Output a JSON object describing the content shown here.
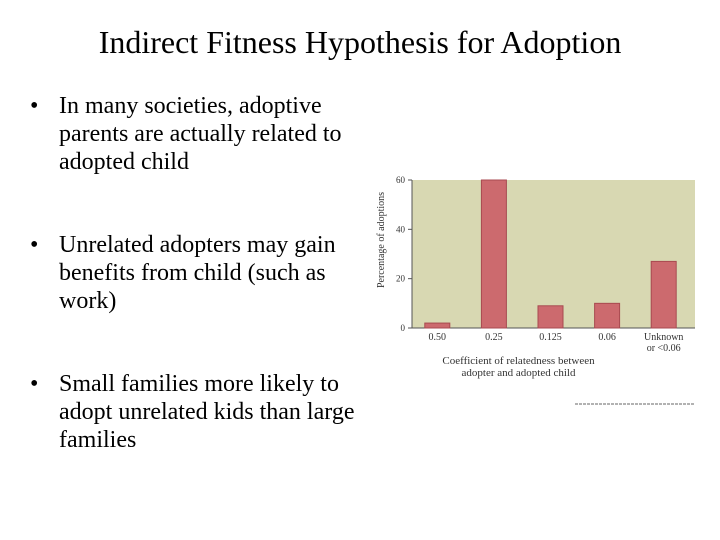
{
  "slide": {
    "title": "Indirect Fitness Hypothesis for Adoption",
    "bullets": [
      "In many societies, adoptive parents are actually related to adopted child",
      "Unrelated adopters may gain benefits from child (such as work)",
      "Small families more likely to adopt unrelated kids than large families"
    ],
    "bullet_glyph": "•"
  },
  "chart_data": {
    "type": "bar",
    "categories": [
      "0.50",
      "0.25",
      "0.125",
      "0.06",
      "Unknown or <0.06"
    ],
    "category_lines": [
      [
        "0.50"
      ],
      [
        "0.25"
      ],
      [
        "0.125"
      ],
      [
        "0.06"
      ],
      [
        "Unknown",
        "or <0.06"
      ]
    ],
    "values": [
      2,
      60,
      9,
      10,
      27
    ],
    "xlabel_lines": [
      "Coefficient of relatedness between",
      "adopter and adopted child"
    ],
    "ylabel": "Percentage of adoptions",
    "ylim": [
      0,
      60
    ],
    "yticks": [
      0,
      20,
      40,
      60
    ],
    "grid": false,
    "colors": {
      "plot_bg": "#d8d8b2",
      "bar": "#cc6a6e",
      "bar_edge": "#a84a50"
    }
  }
}
